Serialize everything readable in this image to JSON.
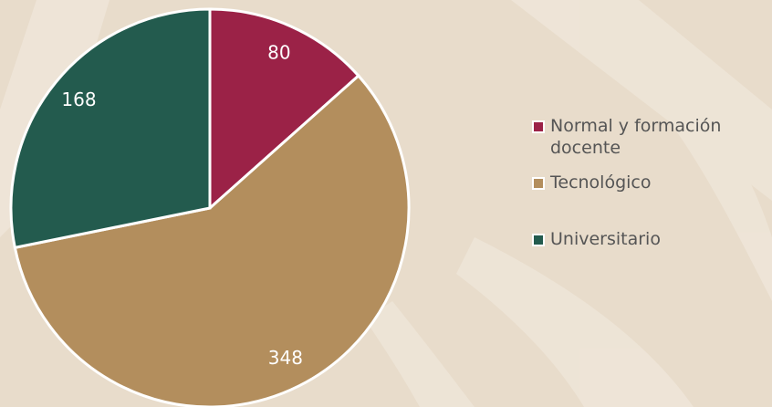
{
  "chart_data": {
    "type": "pie",
    "categories": [
      "Normal y formación docente",
      "Tecnológico",
      "Universitario"
    ],
    "values": [
      80,
      348,
      168
    ],
    "colors": [
      "#9b2247",
      "#b38e5d",
      "#235b4e"
    ],
    "legend": "right"
  }
}
